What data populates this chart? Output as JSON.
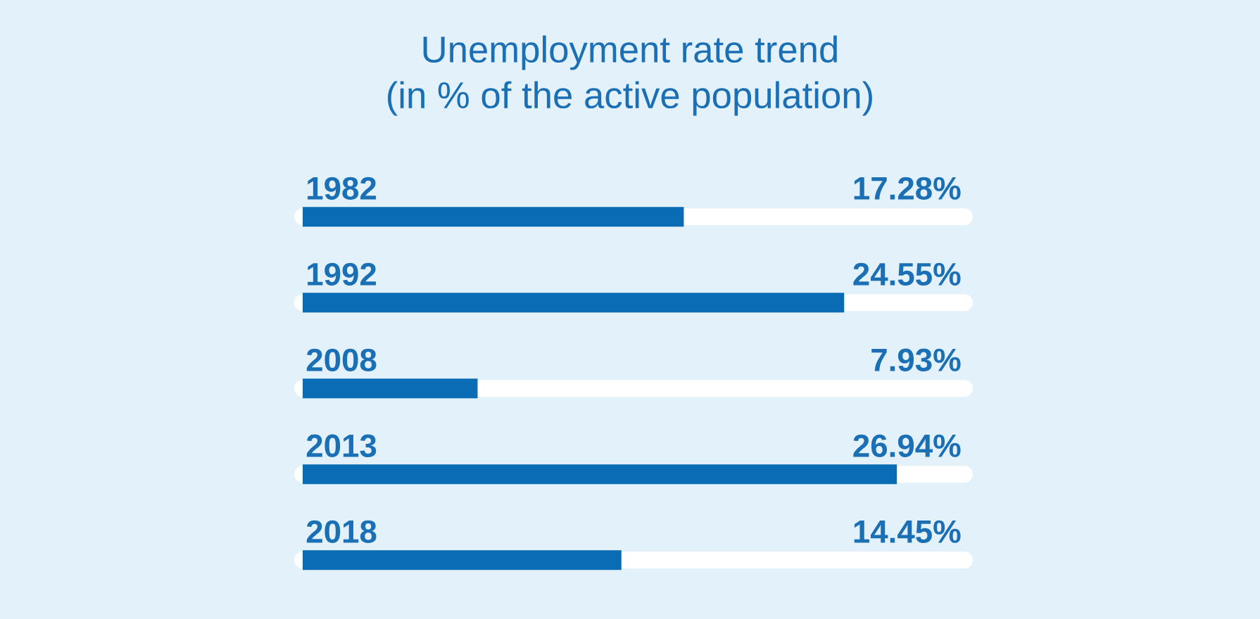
{
  "chart_data": {
    "type": "bar",
    "orientation": "horizontal",
    "title": "Unemployment rate trend",
    "subtitle": "(in % of the active population)",
    "categories": [
      "1982",
      "1992",
      "2008",
      "2013",
      "2018"
    ],
    "values": [
      17.28,
      24.55,
      7.93,
      26.94,
      14.45
    ],
    "value_labels": [
      "17.28%",
      "24.55%",
      "7.93%",
      "26.94%",
      "14.45%"
    ],
    "color": "#0a6cb5",
    "xlim": [
      0,
      30
    ]
  }
}
